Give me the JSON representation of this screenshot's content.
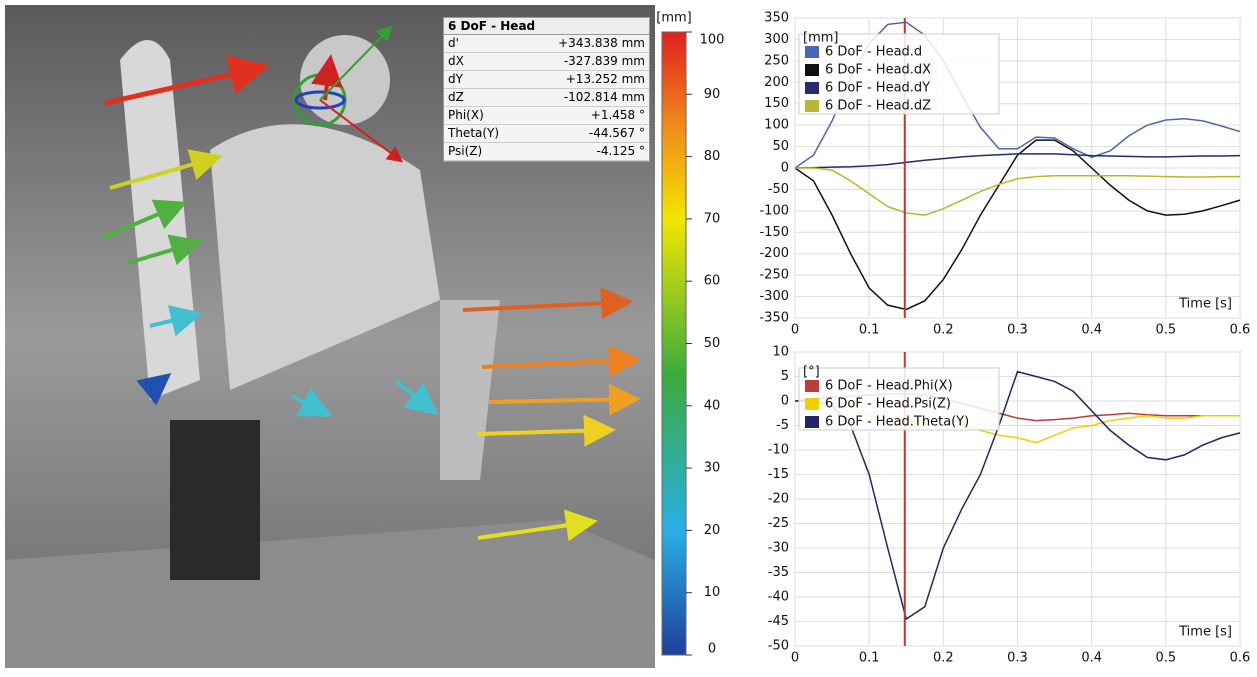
{
  "info_table": {
    "title": "6 DoF - Head",
    "rows": [
      [
        "d'",
        "+343.838 mm"
      ],
      [
        "dX",
        "-327.839 mm"
      ],
      [
        "dY",
        "+13.252 mm"
      ],
      [
        "dZ",
        "-102.814 mm"
      ],
      [
        "Phi(X)",
        "+1.458 °"
      ],
      [
        "Theta(Y)",
        "-44.567 °"
      ],
      [
        "Psi(Z)",
        "-4.125 °"
      ]
    ]
  },
  "colorbar": {
    "unit": "[mm]",
    "lim": [
      0,
      100
    ],
    "ticks": [
      0,
      10,
      20,
      30,
      40,
      50,
      60,
      70,
      80,
      90,
      100
    ]
  },
  "chart_data": [
    {
      "type": "line",
      "unit_label": "[mm]",
      "x_label": "Time [s]",
      "x": [
        0,
        0.025,
        0.05,
        0.075,
        0.1,
        0.125,
        0.15,
        0.175,
        0.2,
        0.225,
        0.25,
        0.275,
        0.3,
        0.325,
        0.35,
        0.375,
        0.4,
        0.425,
        0.45,
        0.475,
        0.5,
        0.525,
        0.55,
        0.575,
        0.6
      ],
      "xlim": [
        0,
        0.6
      ],
      "xticks": [
        0,
        0.1,
        0.2,
        0.3,
        0.4,
        0.5,
        0.6
      ],
      "ylim": [
        -350,
        350
      ],
      "yticks": [
        -350,
        -300,
        -250,
        -200,
        -150,
        -100,
        -50,
        0,
        50,
        100,
        150,
        200,
        250,
        300,
        350
      ],
      "grid": true,
      "cursor_x": 0.148,
      "cursor_color": "#c0392b",
      "series": [
        {
          "name": "6 DoF - Head.d",
          "color": "#4a67b5",
          "values": [
            0,
            30,
            110,
            210,
            290,
            335,
            340,
            310,
            250,
            170,
            95,
            45,
            45,
            72,
            70,
            45,
            25,
            40,
            75,
            100,
            112,
            115,
            110,
            98,
            85
          ]
        },
        {
          "name": "6 DoF - Head.dX",
          "color": "#111111",
          "values": [
            0,
            -30,
            -110,
            -200,
            -280,
            -320,
            -330,
            -310,
            -260,
            -190,
            -110,
            -40,
            30,
            65,
            65,
            40,
            0,
            -40,
            -75,
            -100,
            -110,
            -108,
            -100,
            -88,
            -75
          ]
        },
        {
          "name": "6 DoF - Head.dY",
          "color": "#262c6e",
          "values": [
            0,
            1,
            2,
            3,
            5,
            8,
            13,
            18,
            22,
            26,
            29,
            31,
            33,
            33,
            33,
            31,
            29,
            28,
            27,
            26,
            26,
            27,
            28,
            28,
            29
          ]
        },
        {
          "name": "6 DoF - Head.dZ",
          "color": "#b9b72f",
          "values": [
            0,
            0,
            -5,
            -30,
            -60,
            -90,
            -105,
            -110,
            -95,
            -75,
            -55,
            -38,
            -25,
            -20,
            -18,
            -18,
            -18,
            -18,
            -18,
            -19,
            -20,
            -21,
            -21,
            -20,
            -20
          ]
        }
      ]
    },
    {
      "type": "line",
      "unit_label": "[°]",
      "x_label": "Time [s]",
      "x": [
        0,
        0.025,
        0.05,
        0.075,
        0.1,
        0.125,
        0.15,
        0.175,
        0.2,
        0.225,
        0.25,
        0.275,
        0.3,
        0.325,
        0.35,
        0.375,
        0.4,
        0.425,
        0.45,
        0.475,
        0.5,
        0.525,
        0.55,
        0.575,
        0.6
      ],
      "xlim": [
        0,
        0.6
      ],
      "xticks": [
        0,
        0.1,
        0.2,
        0.3,
        0.4,
        0.5,
        0.6
      ],
      "ylim": [
        -50,
        10
      ],
      "yticks": [
        -50,
        -45,
        -40,
        -35,
        -30,
        -25,
        -20,
        -15,
        -10,
        -5,
        0,
        5,
        10
      ],
      "grid": true,
      "cursor_x": 0.148,
      "cursor_color": "#c0392b",
      "series": [
        {
          "name": "6 DoF - Head.Phi(X)",
          "color": "#c03a3a",
          "values": [
            0,
            0.5,
            0.8,
            1,
            1.2,
            1.4,
            1.5,
            1.2,
            0.5,
            -0.5,
            -1.5,
            -2.5,
            -3.5,
            -4,
            -3.8,
            -3.5,
            -3,
            -2.8,
            -2.5,
            -2.8,
            -3,
            -3,
            -3,
            -3,
            -3
          ]
        },
        {
          "name": "6 DoF - Head.Psi(Z)",
          "color": "#f2d000",
          "values": [
            0,
            0,
            -1,
            -2,
            -3,
            -3.5,
            -4,
            -4,
            -4.5,
            -5,
            -6,
            -7,
            -7.5,
            -8.5,
            -7,
            -5.5,
            -5,
            -4,
            -3.5,
            -3,
            -3.5,
            -3.5,
            -3,
            -3,
            -3
          ]
        },
        {
          "name": "6 DoF - Head.Theta(Y)",
          "color": "#24246a",
          "values": [
            0,
            0,
            -1,
            -5,
            -15,
            -30,
            -44.5,
            -42,
            -30,
            -22,
            -15,
            -5,
            6,
            5,
            4,
            2,
            -2,
            -6,
            -9,
            -11.5,
            -12,
            -11,
            -9,
            -7.5,
            -6.5
          ]
        }
      ]
    }
  ]
}
